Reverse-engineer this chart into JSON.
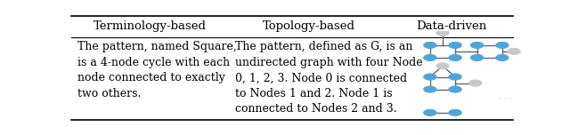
{
  "col_headers": [
    "Terminology-based",
    "Topology-based",
    "Data-driven"
  ],
  "col1_text": "The pattern, named Square,\nis a 4-node cycle with each\nnode connected to exactly\ntwo others.",
  "col2_text": "The pattern, defined as G, is an\nundirected graph with four Node\n0, 1, 2, 3. Node 0 is connected\nto Nodes 1 and 2. Node 1 is\nconnected to Nodes 2 and 3.",
  "header_fontsize": 9.5,
  "body_fontsize": 9.0,
  "bg_color": "#ffffff",
  "text_color": "#000000",
  "blue_node": "#4da6d9",
  "gray_node": "#c8c8c8",
  "edge_color": "#666666",
  "dots_color": "#888888",
  "col_starts": [
    0.0,
    0.355,
    0.72,
    1.0
  ],
  "header_sep": 0.8
}
